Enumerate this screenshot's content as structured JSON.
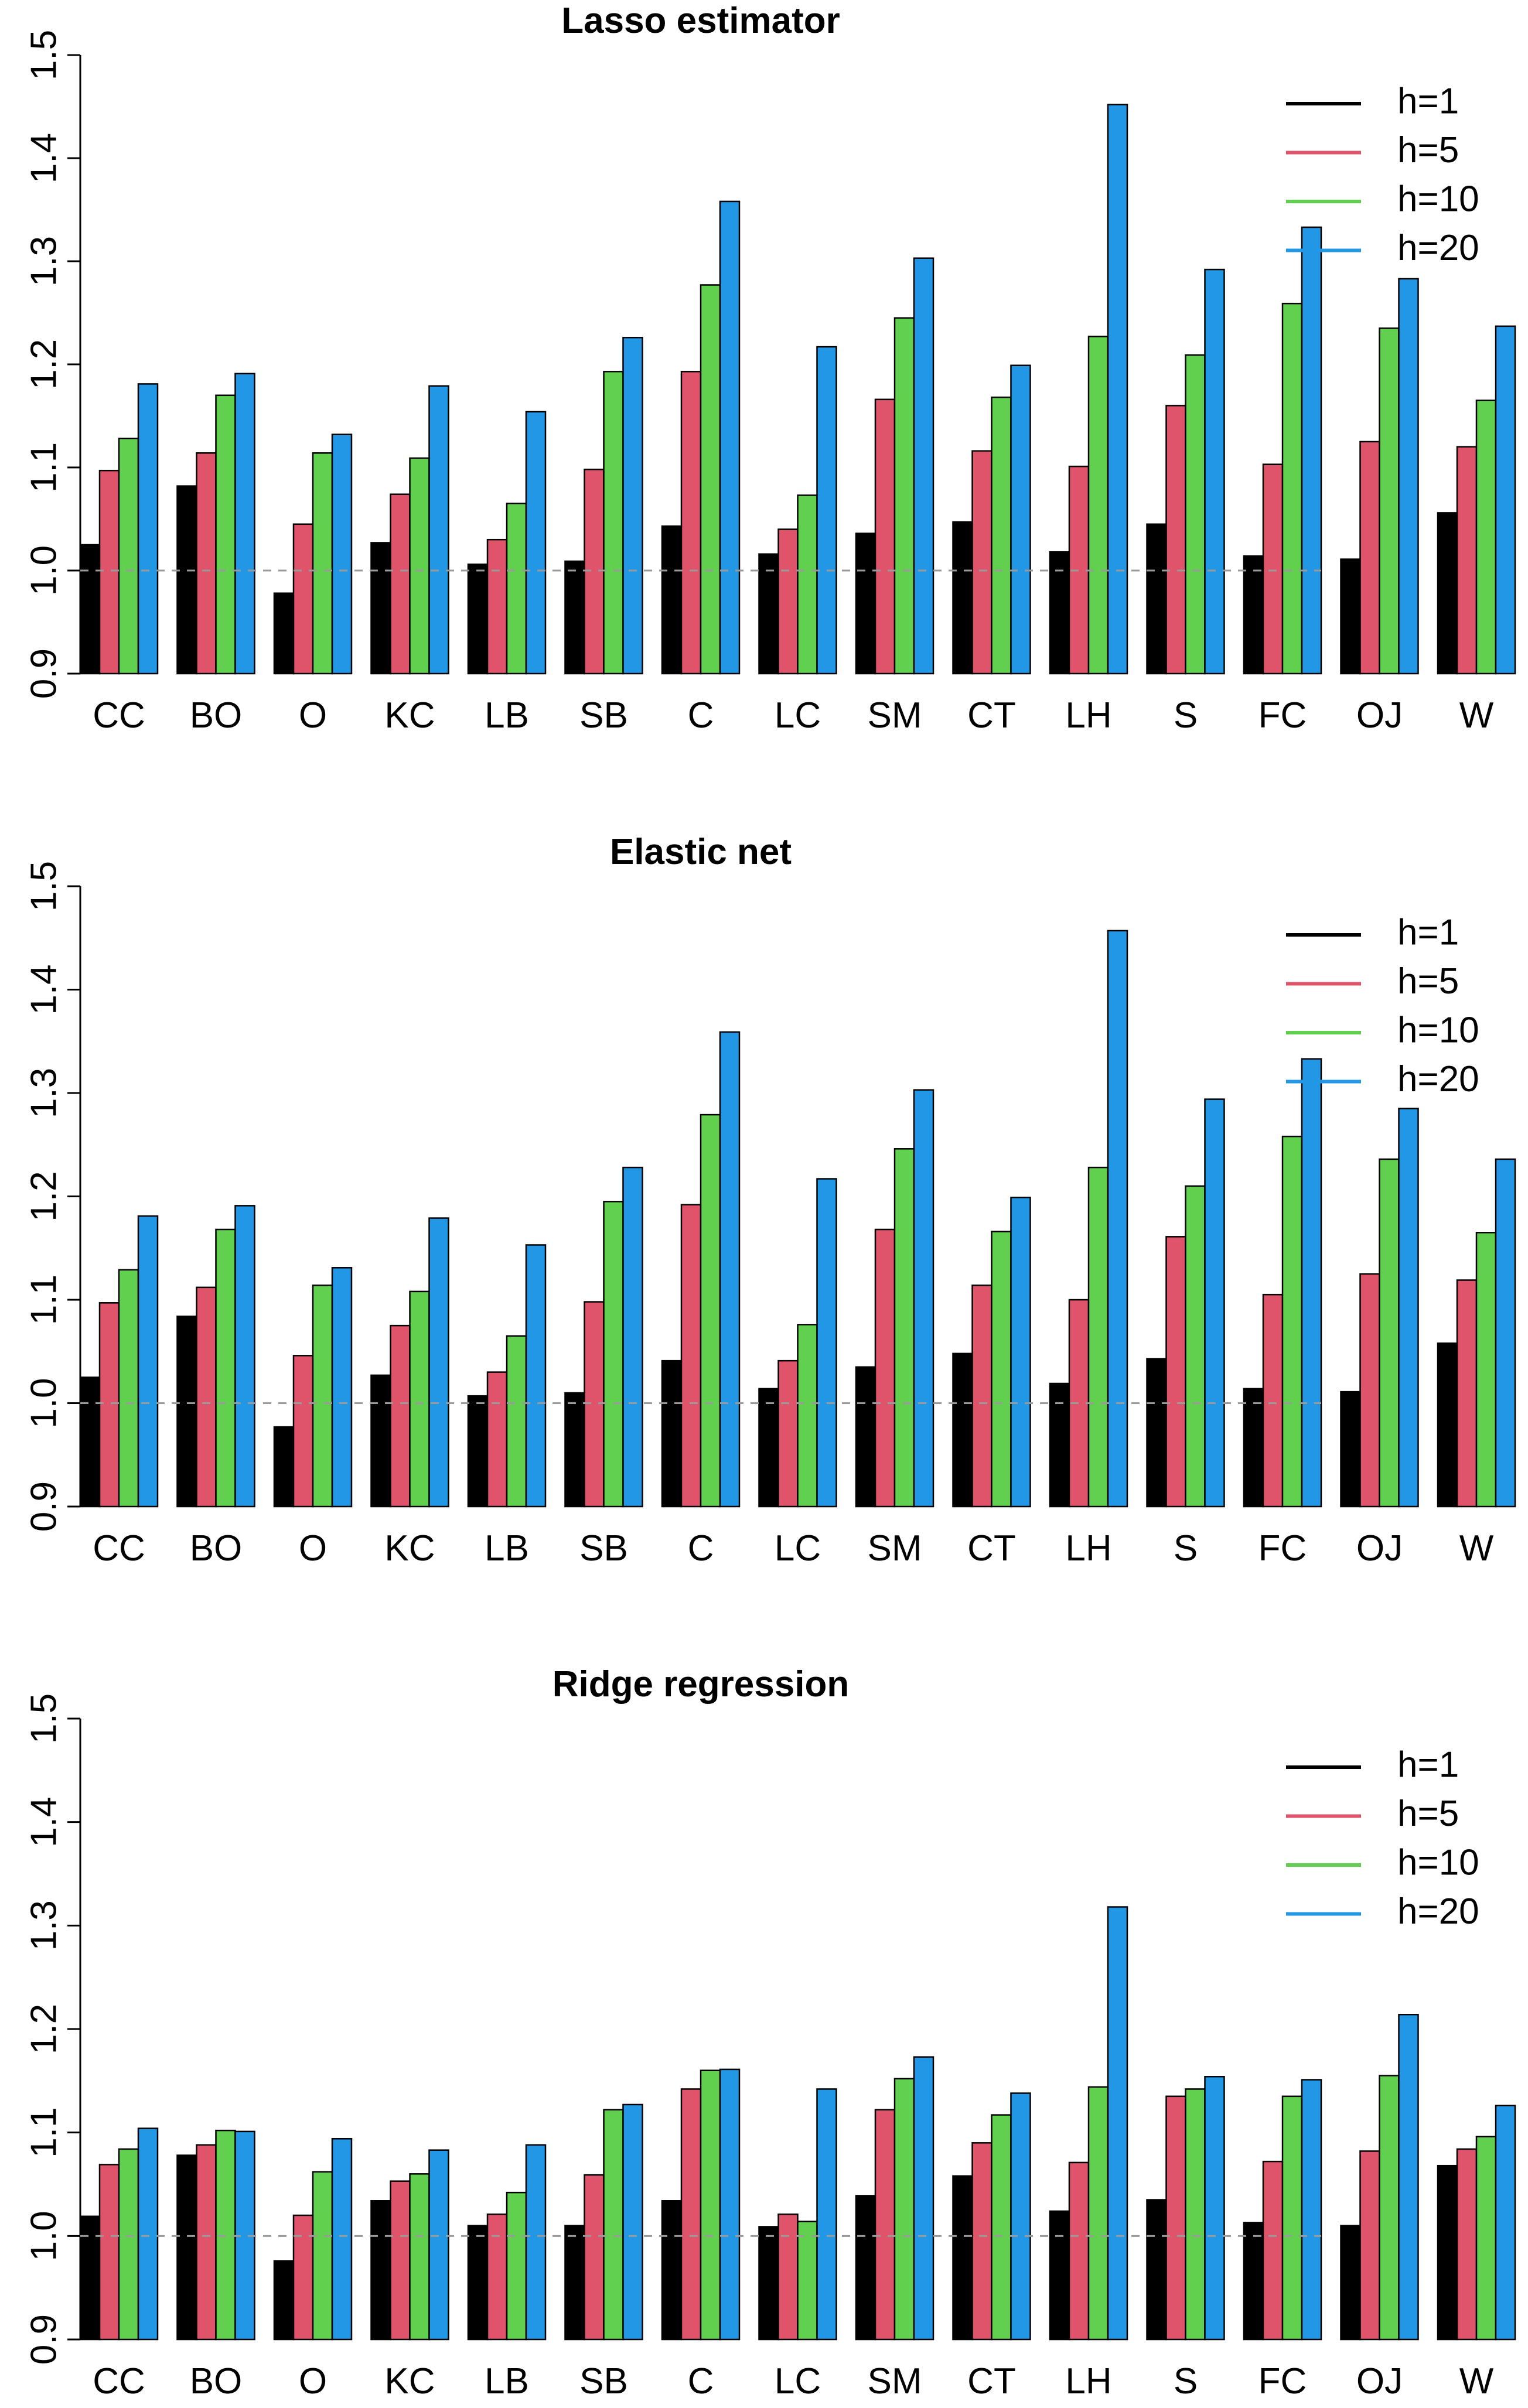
{
  "chart_data": [
    {
      "type": "bar",
      "title": "Lasso estimator",
      "xlabel": "",
      "ylabel": "",
      "ylim": [
        0.9,
        1.5
      ],
      "yticks": [
        "0.9",
        "1.0",
        "1.1",
        "1.2",
        "1.3",
        "1.4",
        "1.5"
      ],
      "reference_line": 1.0,
      "legend_position": "top-right",
      "categories": [
        "CC",
        "BO",
        "O",
        "KC",
        "LB",
        "SB",
        "C",
        "LC",
        "SM",
        "CT",
        "LH",
        "S",
        "FC",
        "OJ",
        "W"
      ],
      "series": [
        {
          "name": "h=1",
          "color": "#000000",
          "values": [
            1.025,
            1.082,
            0.978,
            1.027,
            1.006,
            1.009,
            1.043,
            1.016,
            1.036,
            1.047,
            1.018,
            1.045,
            1.014,
            1.011,
            1.056
          ]
        },
        {
          "name": "h=5",
          "color": "#DF536B",
          "values": [
            1.097,
            1.114,
            1.045,
            1.074,
            1.03,
            1.098,
            1.193,
            1.04,
            1.166,
            1.116,
            1.101,
            1.16,
            1.103,
            1.125,
            1.12
          ]
        },
        {
          "name": "h=10",
          "color": "#61D04F",
          "values": [
            1.128,
            1.17,
            1.114,
            1.109,
            1.065,
            1.193,
            1.277,
            1.073,
            1.245,
            1.168,
            1.227,
            1.209,
            1.259,
            1.235,
            1.165
          ]
        },
        {
          "name": "h=20",
          "color": "#2297E6",
          "values": [
            1.181,
            1.191,
            1.132,
            1.179,
            1.154,
            1.226,
            1.358,
            1.217,
            1.303,
            1.199,
            1.452,
            1.292,
            1.333,
            1.283,
            1.237
          ]
        }
      ]
    },
    {
      "type": "bar",
      "title": "Elastic net",
      "xlabel": "",
      "ylabel": "",
      "ylim": [
        0.9,
        1.5
      ],
      "yticks": [
        "0.9",
        "1.0",
        "1.1",
        "1.2",
        "1.3",
        "1.4",
        "1.5"
      ],
      "reference_line": 1.0,
      "legend_position": "top-right",
      "categories": [
        "CC",
        "BO",
        "O",
        "KC",
        "LB",
        "SB",
        "C",
        "LC",
        "SM",
        "CT",
        "LH",
        "S",
        "FC",
        "OJ",
        "W"
      ],
      "series": [
        {
          "name": "h=1",
          "color": "#000000",
          "values": [
            1.025,
            1.084,
            0.977,
            1.027,
            1.007,
            1.01,
            1.041,
            1.014,
            1.035,
            1.048,
            1.019,
            1.043,
            1.014,
            1.011,
            1.058
          ]
        },
        {
          "name": "h=5",
          "color": "#DF536B",
          "values": [
            1.097,
            1.112,
            1.046,
            1.075,
            1.03,
            1.098,
            1.192,
            1.041,
            1.168,
            1.114,
            1.1,
            1.161,
            1.105,
            1.125,
            1.119
          ]
        },
        {
          "name": "h=10",
          "color": "#61D04F",
          "values": [
            1.129,
            1.168,
            1.114,
            1.108,
            1.065,
            1.195,
            1.279,
            1.076,
            1.246,
            1.166,
            1.228,
            1.21,
            1.258,
            1.236,
            1.165
          ]
        },
        {
          "name": "h=20",
          "color": "#2297E6",
          "values": [
            1.181,
            1.191,
            1.131,
            1.179,
            1.153,
            1.228,
            1.359,
            1.217,
            1.303,
            1.199,
            1.457,
            1.294,
            1.333,
            1.285,
            1.236
          ]
        }
      ]
    },
    {
      "type": "bar",
      "title": "Ridge regression",
      "xlabel": "",
      "ylabel": "",
      "ylim": [
        0.9,
        1.5
      ],
      "yticks": [
        "0.9",
        "1.0",
        "1.1",
        "1.2",
        "1.3",
        "1.4",
        "1.5"
      ],
      "reference_line": 1.0,
      "legend_position": "top-right",
      "categories": [
        "CC",
        "BO",
        "O",
        "KC",
        "LB",
        "SB",
        "C",
        "LC",
        "SM",
        "CT",
        "LH",
        "S",
        "FC",
        "OJ",
        "W"
      ],
      "series": [
        {
          "name": "h=1",
          "color": "#000000",
          "values": [
            1.019,
            1.078,
            0.976,
            1.034,
            1.01,
            1.01,
            1.034,
            1.009,
            1.039,
            1.058,
            1.024,
            1.035,
            1.013,
            1.01,
            1.068
          ]
        },
        {
          "name": "h=5",
          "color": "#DF536B",
          "values": [
            1.069,
            1.088,
            1.02,
            1.053,
            1.021,
            1.059,
            1.142,
            1.021,
            1.122,
            1.09,
            1.071,
            1.135,
            1.072,
            1.082,
            1.084
          ]
        },
        {
          "name": "h=10",
          "color": "#61D04F",
          "values": [
            1.084,
            1.102,
            1.062,
            1.06,
            1.042,
            1.122,
            1.16,
            1.014,
            1.152,
            1.117,
            1.144,
            1.142,
            1.135,
            1.155,
            1.096
          ]
        },
        {
          "name": "h=20",
          "color": "#2297E6",
          "values": [
            1.104,
            1.101,
            1.094,
            1.083,
            1.088,
            1.127,
            1.161,
            1.142,
            1.173,
            1.138,
            1.318,
            1.154,
            1.151,
            1.214,
            1.126
          ]
        }
      ]
    }
  ]
}
